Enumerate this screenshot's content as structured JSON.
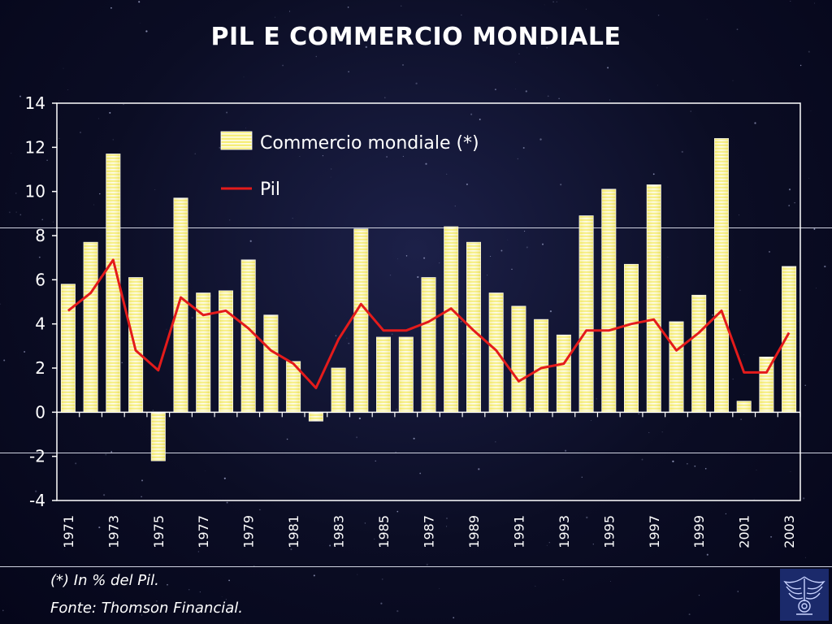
{
  "slide": {
    "title": "PIL E COMMERCIO MONDIALE",
    "footnote": "(*) In % del Pil.",
    "source": "Fonte: Thomson Financial.",
    "logo_icon": "confindustria-eagle-logo-icon"
  },
  "colors": {
    "background": "#0b0d24",
    "bar_fill": "#f4ec6a",
    "bar_stripe": "#ffffff",
    "line": "#e41b1b",
    "text": "#ffffff",
    "plot_border": "#ffffff"
  },
  "chart_data": {
    "type": "bar",
    "title": "PIL E COMMERCIO MONDIALE",
    "xlabel": "",
    "ylabel": "",
    "ylim": [
      -4,
      14
    ],
    "yticks": [
      -4,
      -2,
      0,
      2,
      4,
      6,
      8,
      10,
      12,
      14
    ],
    "grid": false,
    "legend_position": "top-right",
    "categories": [
      "1971",
      "1972",
      "1973",
      "1974",
      "1975",
      "1976",
      "1977",
      "1978",
      "1979",
      "1980",
      "1981",
      "1982",
      "1983",
      "1984",
      "1985",
      "1986",
      "1987",
      "1988",
      "1989",
      "1990",
      "1991",
      "1992",
      "1993",
      "1994",
      "1995",
      "1996",
      "1997",
      "1998",
      "1999",
      "2000",
      "2001",
      "2002",
      "2003"
    ],
    "tick_labels": [
      "1971",
      "",
      "1973",
      "",
      "1975",
      "",
      "1977",
      "",
      "1979",
      "",
      "1981",
      "",
      "1983",
      "",
      "1985",
      "",
      "1987",
      "",
      "1989",
      "",
      "1991",
      "",
      "1993",
      "",
      "1995",
      "",
      "1997",
      "",
      "1999",
      "",
      "2001",
      "",
      "2003"
    ],
    "series": [
      {
        "name": "Commercio mondiale (*)",
        "type": "bar",
        "values": [
          5.8,
          7.7,
          11.7,
          6.1,
          -2.2,
          9.7,
          5.4,
          5.5,
          6.9,
          4.4,
          2.3,
          -0.4,
          2.0,
          8.3,
          3.4,
          3.4,
          6.1,
          8.4,
          7.7,
          5.4,
          4.8,
          4.2,
          3.5,
          8.9,
          10.1,
          6.7,
          10.3,
          4.1,
          5.3,
          12.4,
          0.5,
          2.5,
          6.6
        ]
      },
      {
        "name": "Pil",
        "type": "line",
        "values": [
          4.6,
          5.4,
          6.9,
          2.8,
          1.9,
          5.2,
          4.4,
          4.6,
          3.8,
          2.8,
          2.2,
          1.1,
          3.3,
          4.9,
          3.7,
          3.7,
          4.1,
          4.7,
          3.7,
          2.8,
          1.4,
          2.0,
          2.2,
          3.7,
          3.7,
          4.0,
          4.2,
          2.8,
          3.6,
          4.6,
          1.8,
          1.8,
          3.6
        ]
      }
    ]
  }
}
